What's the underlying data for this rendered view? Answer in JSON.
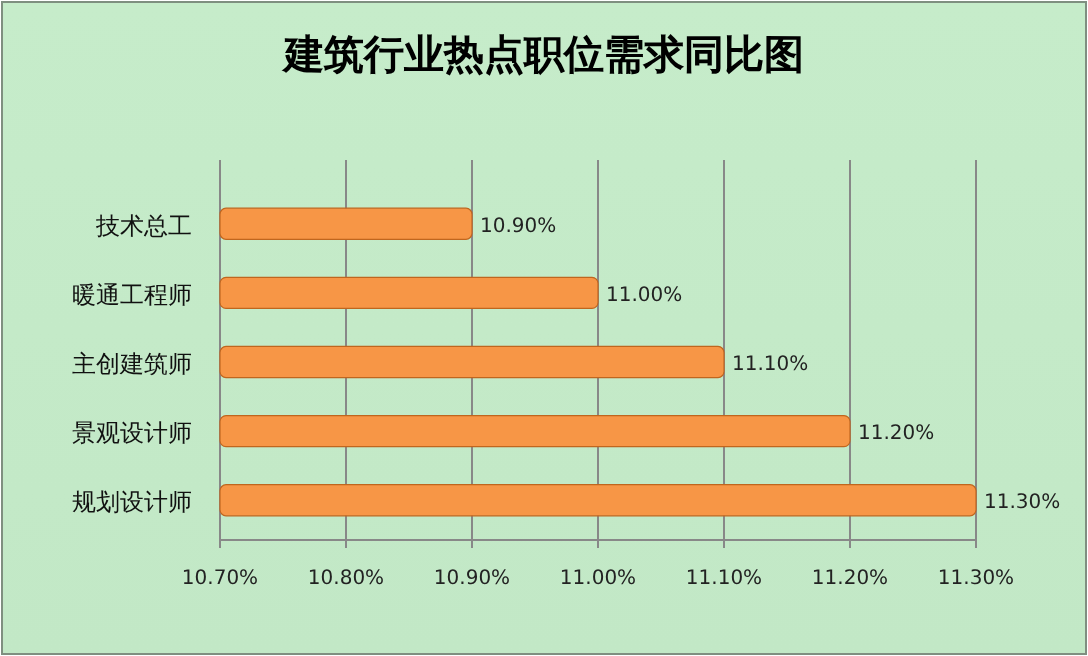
{
  "chart_data": {
    "type": "bar",
    "orientation": "horizontal",
    "title": "建筑行业热点职位需求同比图",
    "categories": [
      "技术总工",
      "暖通工程师",
      "主创建筑师",
      "景观设计师",
      "规划设计师"
    ],
    "values": [
      10.9,
      11.0,
      11.1,
      11.2,
      11.3
    ],
    "value_labels": [
      "10.90%",
      "11.00%",
      "11.10%",
      "11.20%",
      "11.30%"
    ],
    "color": "#f79646",
    "xlim": [
      10.7,
      11.3
    ],
    "xticks": [
      {
        "value": 10.7,
        "label": "10.70%"
      },
      {
        "value": 10.8,
        "label": "10.80%"
      },
      {
        "value": 10.9,
        "label": "10.90%"
      },
      {
        "value": 11.0,
        "label": "11.00%"
      },
      {
        "value": 11.1,
        "label": "11.10%"
      },
      {
        "value": 11.2,
        "label": "11.20%"
      },
      {
        "value": 11.3,
        "label": "11.30%"
      }
    ],
    "grid": "x"
  }
}
